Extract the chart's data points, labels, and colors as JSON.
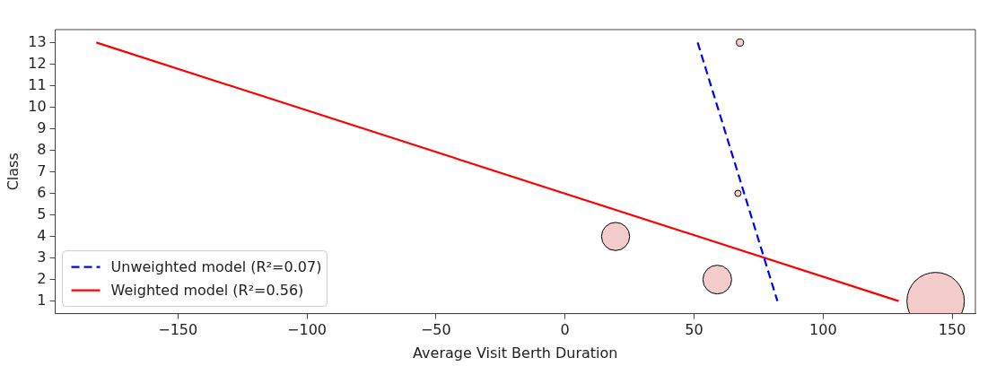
{
  "chart_data": {
    "type": "bubble",
    "xlabel": "Average Visit Berth Duration",
    "ylabel": "Class",
    "xlim": [
      -197.5,
      159
    ],
    "ylim": [
      0.42,
      13.6
    ],
    "xticks": [
      {
        "value": -150,
        "label": "−150"
      },
      {
        "value": -100,
        "label": "−100"
      },
      {
        "value": -50,
        "label": "−50"
      },
      0,
      50,
      100,
      150
    ],
    "yticks": [
      1,
      2,
      3,
      4,
      5,
      6,
      7,
      8,
      9,
      10,
      11,
      12,
      13
    ],
    "grid": false,
    "legend": "bottom left",
    "series": [
      {
        "type": "bubble",
        "color": "#f4cccc",
        "marker": "circle",
        "x": [
          143.6,
          59,
          19.6,
          67.8,
          67
        ],
        "values": [
          1,
          2,
          4,
          13,
          6
        ],
        "sizes": [
          1,
          0.25,
          0.24,
          0.016,
          0.012
        ]
      },
      {
        "type": "line",
        "name": "Unweighted model (R²=0.07)",
        "color": "#0000ff",
        "line_style": "dashed",
        "marker": "none",
        "x": [
          51.4,
          82.3
        ],
        "values": [
          13,
          1
        ]
      },
      {
        "type": "line",
        "name": "Weighted model (R²=0.56)",
        "color": "#ff0000",
        "line_style": "solid",
        "marker": "none",
        "x": [
          -181.6,
          129.3
        ],
        "values": [
          13,
          1
        ]
      }
    ]
  }
}
